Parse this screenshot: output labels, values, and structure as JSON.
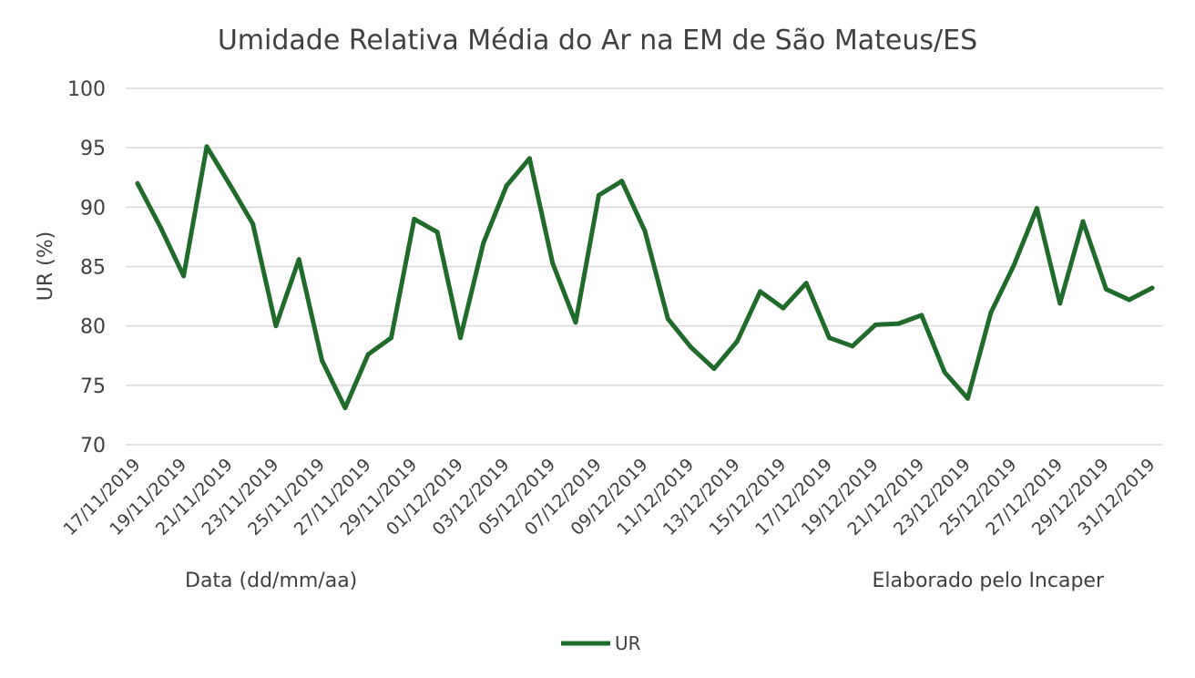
{
  "chart_data": {
    "type": "line",
    "title": "Umidade Relativa Média do Ar na EM de São Mateus/ES",
    "xlabel": "Data (dd/mm/aa)",
    "ylabel": "UR (%)",
    "note": "Elaborado pelo Incaper",
    "ylim": [
      70,
      100
    ],
    "yticks": [
      "70",
      "75",
      "80",
      "85",
      "90",
      "95",
      "100"
    ],
    "grid": true,
    "legend_position": "bottom",
    "x": [
      "17/11/2019",
      "18/11/2019",
      "19/11/2019",
      "20/11/2019",
      "21/11/2019",
      "22/11/2019",
      "23/11/2019",
      "24/11/2019",
      "25/11/2019",
      "26/11/2019",
      "27/11/2019",
      "28/11/2019",
      "29/11/2019",
      "30/11/2019",
      "01/12/2019",
      "02/12/2019",
      "03/12/2019",
      "04/12/2019",
      "05/12/2019",
      "06/12/2019",
      "07/12/2019",
      "08/12/2019",
      "09/12/2019",
      "10/12/2019",
      "11/12/2019",
      "12/12/2019",
      "13/12/2019",
      "14/12/2019",
      "15/12/2019",
      "16/12/2019",
      "17/12/2019",
      "18/12/2019",
      "19/12/2019",
      "20/12/2019",
      "21/12/2019",
      "22/12/2019",
      "23/12/2019",
      "24/12/2019",
      "25/12/2019",
      "26/12/2019",
      "27/12/2019",
      "28/12/2019",
      "29/12/2019",
      "30/12/2019",
      "31/12/2019"
    ],
    "xtick_labels": [
      "17/11/2019",
      "19/11/2019",
      "21/11/2019",
      "23/11/2019",
      "25/11/2019",
      "27/11/2019",
      "29/11/2019",
      "01/12/2019",
      "03/12/2019",
      "05/12/2019",
      "07/12/2019",
      "09/12/2019",
      "11/12/2019",
      "13/12/2019",
      "15/12/2019",
      "17/12/2019",
      "19/12/2019",
      "21/12/2019",
      "23/12/2019",
      "25/12/2019",
      "27/12/2019",
      "29/12/2019",
      "31/12/2019"
    ],
    "series": [
      {
        "name": "UR",
        "color": "#1e6b2a",
        "values": [
          92.0,
          88.3,
          84.2,
          95.1,
          91.9,
          88.6,
          80.0,
          85.6,
          77.1,
          73.1,
          77.6,
          79.0,
          89.0,
          87.9,
          79.0,
          87.0,
          91.8,
          94.1,
          85.3,
          80.3,
          91.0,
          92.2,
          88.0,
          80.6,
          78.2,
          76.4,
          78.7,
          82.9,
          81.5,
          83.6,
          79.0,
          78.3,
          80.1,
          80.2,
          80.9,
          76.1,
          73.9,
          81.1,
          85.1,
          89.9,
          81.9,
          88.8,
          83.1,
          82.2,
          83.2
        ]
      }
    ]
  }
}
